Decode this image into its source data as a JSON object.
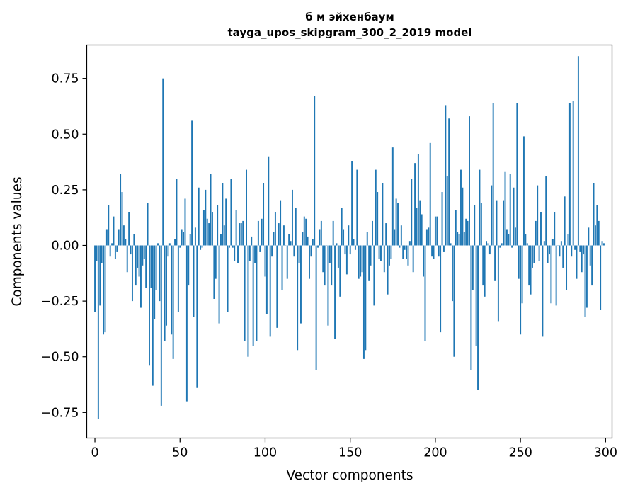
{
  "colors": {
    "bar": "#1f77b4",
    "axis": "#000000",
    "background": "#ffffff"
  },
  "chart_data": {
    "type": "bar",
    "title": "б м эйхенбаум",
    "subtitle": "tayga_upos_skipgram_300_2_2019 model",
    "xlabel": "Vector components",
    "ylabel": "Components values",
    "xlim": [
      -4.8,
      303.8
    ],
    "ylim": [
      -0.865,
      0.9
    ],
    "grid": false,
    "xticks": [
      0,
      50,
      100,
      150,
      200,
      250,
      300
    ],
    "yticks": [
      -0.75,
      -0.5,
      -0.25,
      0.0,
      0.25,
      0.5,
      0.75
    ],
    "xtick_labels": [
      "0",
      "50",
      "100",
      "150",
      "200",
      "250",
      "300"
    ],
    "ytick_labels": [
      "−0.75",
      "−0.50",
      "−0.25",
      "0.00",
      "0.25",
      "0.50",
      "0.75"
    ],
    "x": [
      0,
      1,
      2,
      3,
      4,
      5,
      6,
      7,
      8,
      9,
      10,
      11,
      12,
      13,
      14,
      15,
      16,
      17,
      18,
      19,
      20,
      21,
      22,
      23,
      24,
      25,
      26,
      27,
      28,
      29,
      30,
      31,
      32,
      33,
      34,
      35,
      36,
      37,
      38,
      39,
      40,
      41,
      42,
      43,
      44,
      45,
      46,
      47,
      48,
      49,
      50,
      51,
      52,
      53,
      54,
      55,
      56,
      57,
      58,
      59,
      60,
      61,
      62,
      63,
      64,
      65,
      66,
      67,
      68,
      69,
      70,
      71,
      72,
      73,
      74,
      75,
      76,
      77,
      78,
      79,
      80,
      81,
      82,
      83,
      84,
      85,
      86,
      87,
      88,
      89,
      90,
      91,
      92,
      93,
      94,
      95,
      96,
      97,
      98,
      99,
      100,
      101,
      102,
      103,
      104,
      105,
      106,
      107,
      108,
      109,
      110,
      111,
      112,
      113,
      114,
      115,
      116,
      117,
      118,
      119,
      120,
      121,
      122,
      123,
      124,
      125,
      126,
      127,
      128,
      129,
      130,
      131,
      132,
      133,
      134,
      135,
      136,
      137,
      138,
      139,
      140,
      141,
      142,
      143,
      144,
      145,
      146,
      147,
      148,
      149,
      150,
      151,
      152,
      153,
      154,
      155,
      156,
      157,
      158,
      159,
      160,
      161,
      162,
      163,
      164,
      165,
      166,
      167,
      168,
      169,
      170,
      171,
      172,
      173,
      174,
      175,
      176,
      177,
      178,
      179,
      180,
      181,
      182,
      183,
      184,
      185,
      186,
      187,
      188,
      189,
      190,
      191,
      192,
      193,
      194,
      195,
      196,
      197,
      198,
      199,
      200,
      201,
      202,
      203,
      204,
      205,
      206,
      207,
      208,
      209,
      210,
      211,
      212,
      213,
      214,
      215,
      216,
      217,
      218,
      219,
      220,
      221,
      222,
      223,
      224,
      225,
      226,
      227,
      228,
      229,
      230,
      231,
      232,
      233,
      234,
      235,
      236,
      237,
      238,
      239,
      240,
      241,
      242,
      243,
      244,
      245,
      246,
      247,
      248,
      249,
      250,
      251,
      252,
      253,
      254,
      255,
      256,
      257,
      258,
      259,
      260,
      261,
      262,
      263,
      264,
      265,
      266,
      267,
      268,
      269,
      270,
      271,
      272,
      273,
      274,
      275,
      276,
      277,
      278,
      279,
      280,
      281,
      282,
      283,
      284,
      285,
      286,
      287,
      288,
      289,
      290,
      291,
      292,
      293,
      294,
      295,
      296,
      297,
      298,
      299
    ],
    "values": [
      -0.3,
      -0.07,
      -0.78,
      -0.27,
      -0.08,
      -0.4,
      -0.39,
      0.07,
      0.18,
      -0.05,
      0.01,
      0.13,
      -0.06,
      -0.03,
      0.07,
      0.32,
      0.24,
      0.09,
      0.03,
      -0.12,
      0.15,
      -0.04,
      -0.25,
      0.05,
      -0.18,
      -0.1,
      -0.14,
      -0.28,
      -0.09,
      -0.06,
      -0.19,
      0.19,
      -0.54,
      -0.19,
      -0.63,
      -0.33,
      -0.2,
      0.01,
      -0.25,
      -0.72,
      0.75,
      -0.43,
      -0.36,
      -0.05,
      0.01,
      -0.4,
      -0.51,
      0.03,
      0.3,
      -0.3,
      -0.01,
      0.07,
      0.06,
      0.21,
      -0.7,
      -0.18,
      0.05,
      0.56,
      -0.32,
      0.08,
      -0.64,
      0.26,
      -0.02,
      -0.01,
      0.16,
      0.25,
      0.12,
      0.1,
      0.32,
      0.15,
      -0.24,
      -0.15,
      0.18,
      -0.35,
      0.05,
      0.28,
      0.09,
      0.21,
      -0.3,
      -0.01,
      0.3,
      -0.01,
      -0.07,
      0.16,
      -0.08,
      0.1,
      0.1,
      0.11,
      -0.43,
      0.34,
      -0.5,
      -0.07,
      0.04,
      -0.45,
      -0.08,
      -0.43,
      0.11,
      -0.03,
      0.12,
      0.28,
      -0.14,
      -0.31,
      0.4,
      -0.41,
      -0.05,
      0.06,
      0.15,
      -0.37,
      0.1,
      0.2,
      -0.2,
      0.09,
      0.0,
      -0.15,
      0.05,
      0.02,
      0.25,
      -0.05,
      0.17,
      -0.47,
      -0.08,
      -0.35,
      0.06,
      0.13,
      0.12,
      0.04,
      -0.15,
      -0.05,
      0.03,
      0.67,
      -0.56,
      -0.01,
      0.07,
      0.11,
      -0.12,
      -0.18,
      0.0,
      -0.36,
      -0.08,
      -0.18,
      0.11,
      -0.42,
      0.01,
      -0.1,
      -0.23,
      0.17,
      0.07,
      -0.04,
      -0.13,
      0.09,
      -0.04,
      0.38,
      0.03,
      -0.02,
      0.34,
      -0.15,
      -0.14,
      -0.12,
      -0.51,
      -0.47,
      0.06,
      -0.16,
      -0.09,
      0.11,
      -0.27,
      0.34,
      0.24,
      -0.06,
      -0.07,
      0.28,
      -0.12,
      0.1,
      -0.22,
      -0.09,
      -0.06,
      0.44,
      0.07,
      0.21,
      0.19,
      -0.01,
      0.09,
      -0.06,
      -0.02,
      -0.06,
      -0.09,
      0.02,
      0.3,
      -0.12,
      0.37,
      0.17,
      0.41,
      0.2,
      0.14,
      -0.14,
      -0.43,
      0.07,
      0.08,
      0.46,
      -0.05,
      -0.06,
      0.13,
      0.13,
      -0.05,
      -0.39,
      0.24,
      -0.03,
      0.63,
      0.31,
      0.57,
      0.01,
      -0.25,
      -0.5,
      0.16,
      0.06,
      0.05,
      0.34,
      0.26,
      0.06,
      0.12,
      0.11,
      0.58,
      -0.56,
      -0.2,
      0.18,
      -0.45,
      -0.65,
      0.34,
      0.19,
      -0.18,
      -0.23,
      0.02,
      0.01,
      -0.04,
      0.27,
      0.64,
      -0.16,
      0.2,
      -0.34,
      -0.01,
      0.01,
      0.2,
      0.33,
      0.07,
      0.05,
      0.32,
      -0.01,
      0.26,
      0.08,
      0.64,
      -0.15,
      -0.4,
      -0.26,
      0.49,
      0.05,
      0.01,
      -0.18,
      -0.22,
      -0.1,
      -0.08,
      0.11,
      0.27,
      -0.07,
      0.15,
      -0.41,
      0.02,
      0.31,
      -0.08,
      -0.04,
      -0.26,
      0.03,
      0.15,
      -0.27,
      0.0,
      -0.05,
      0.02,
      -0.1,
      0.22,
      -0.2,
      0.05,
      0.64,
      -0.05,
      0.65,
      -0.02,
      -0.15,
      0.85,
      -0.03,
      -0.12,
      -0.04,
      -0.32,
      -0.28,
      0.08,
      -0.09,
      -0.18,
      0.28,
      0.09,
      0.18,
      0.11,
      -0.29,
      0.02,
      0.01
    ]
  }
}
